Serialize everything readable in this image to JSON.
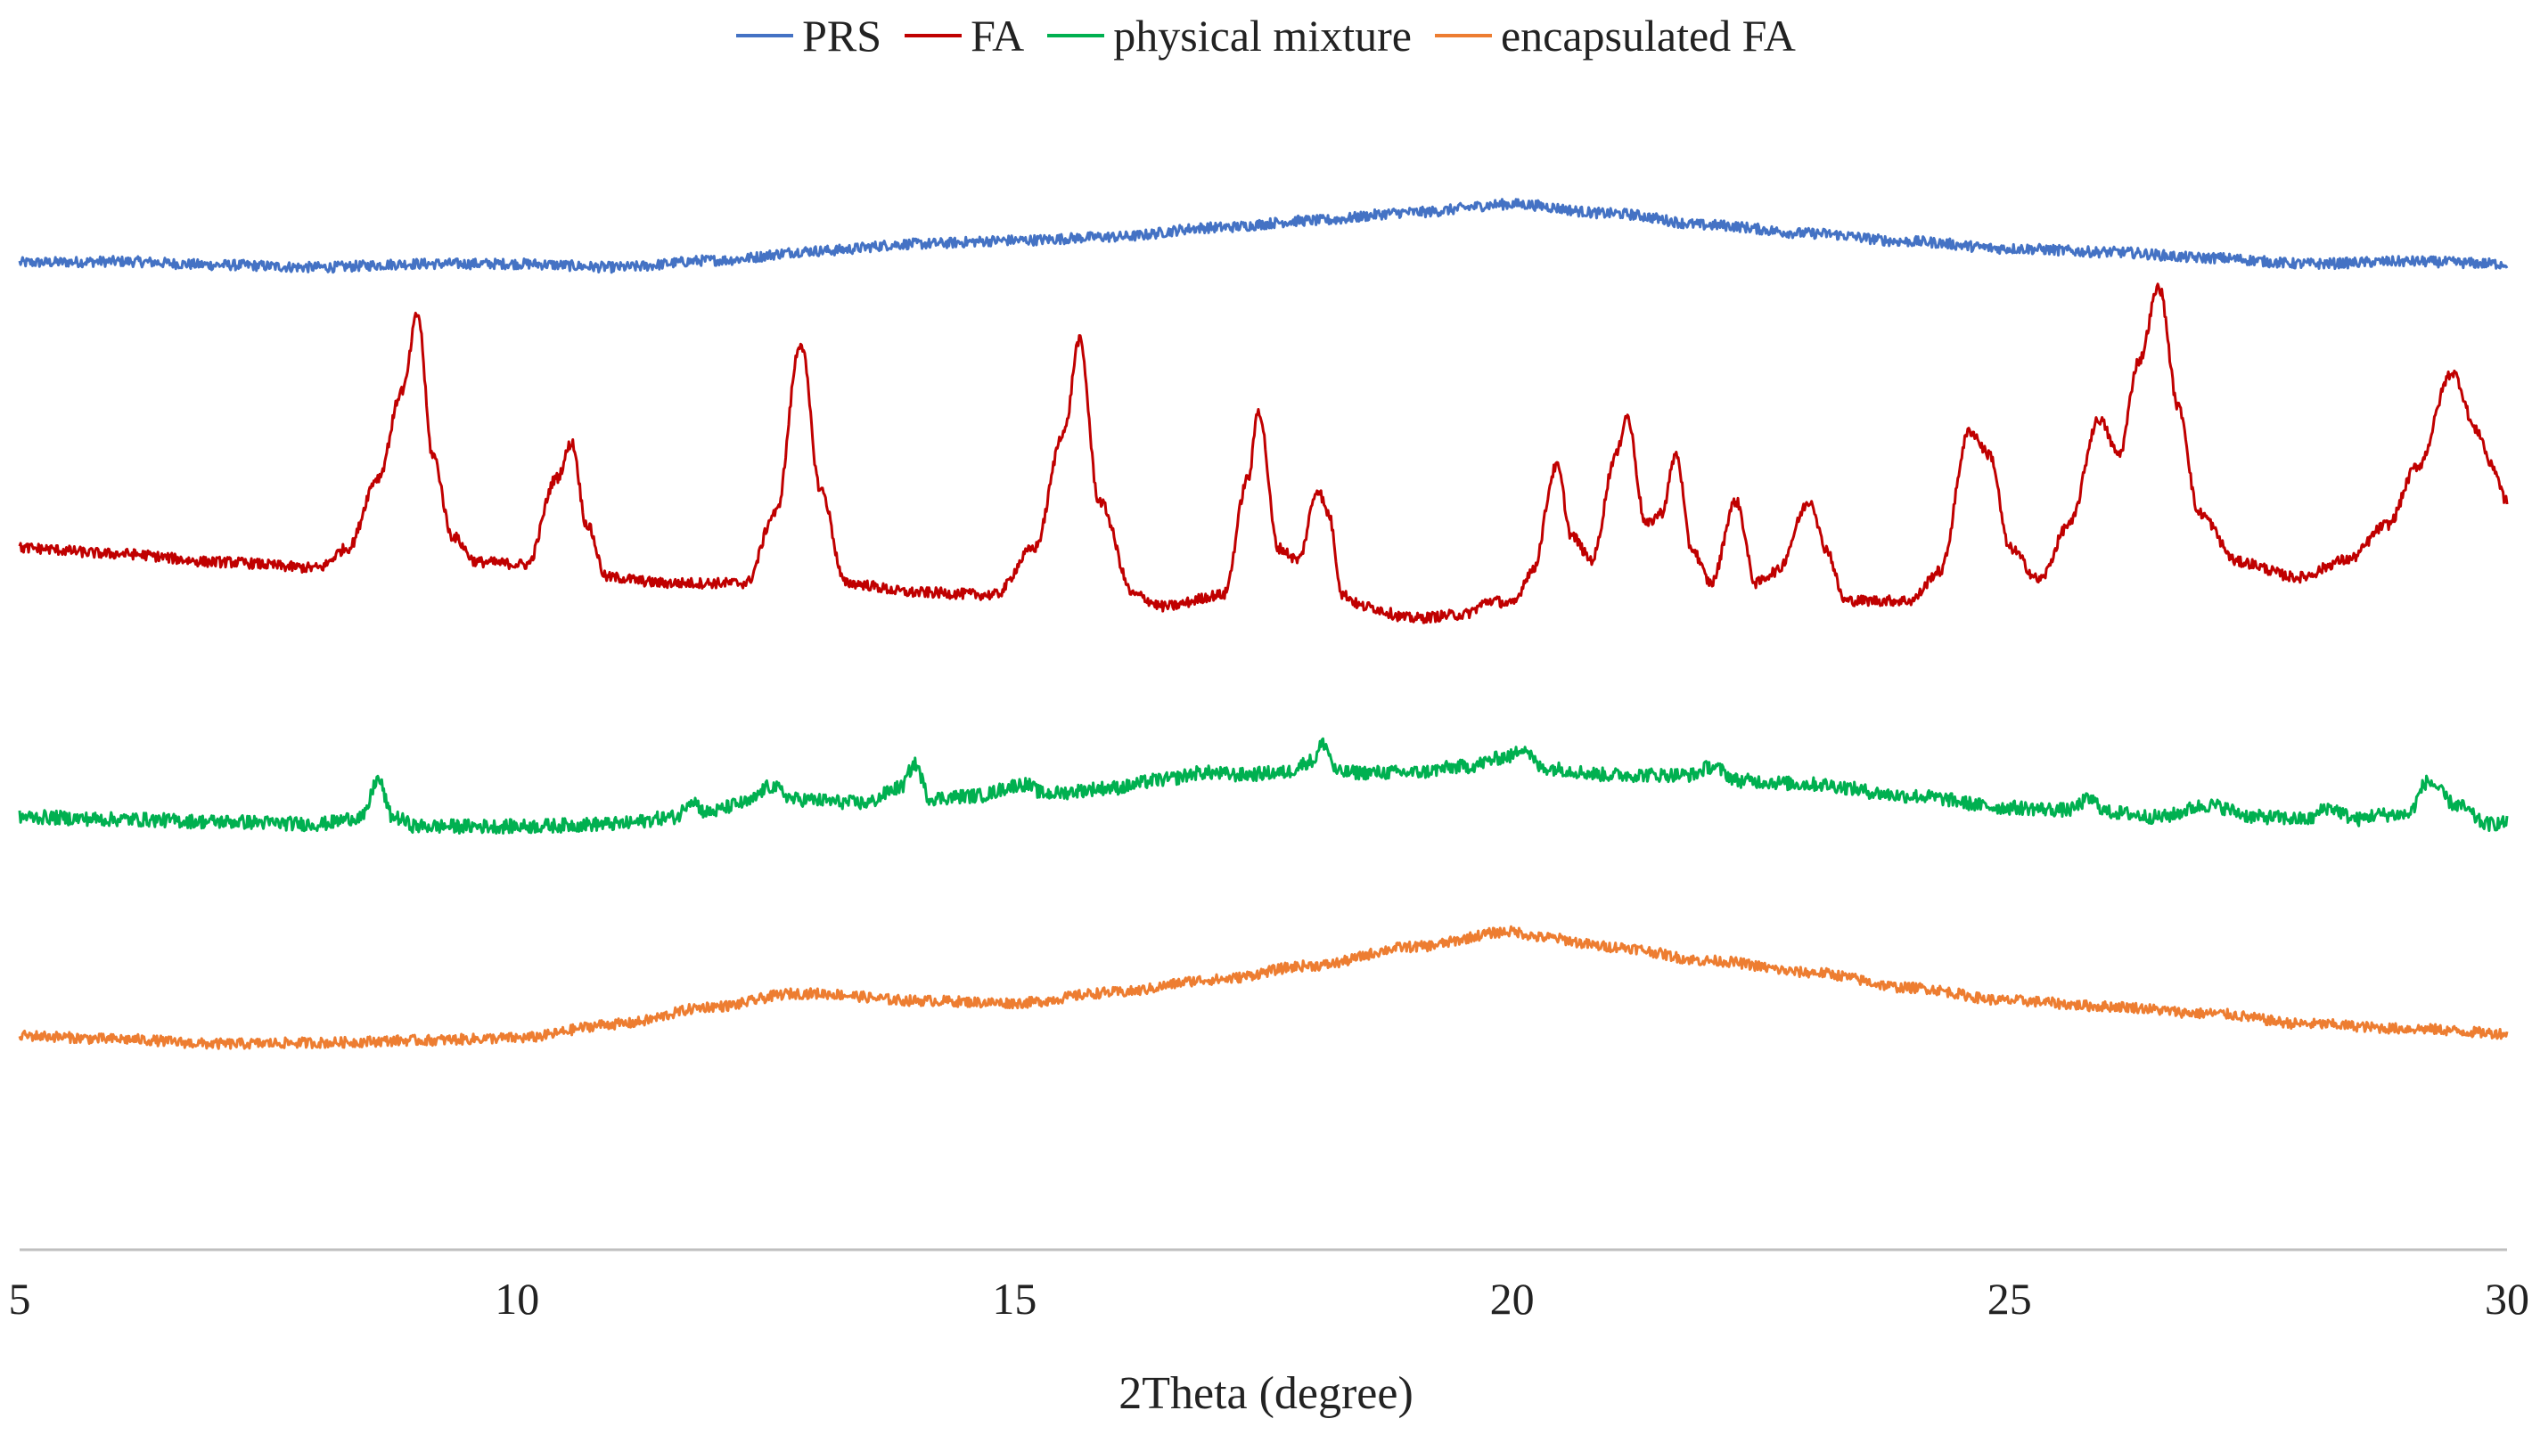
{
  "chart_data": {
    "type": "line",
    "title": "",
    "xlabel": "2Theta (degree)",
    "ylabel": "",
    "xlim": [
      5,
      30
    ],
    "ylim": [
      0,
      100
    ],
    "xticks": [
      5,
      10,
      15,
      20,
      25,
      30
    ],
    "grid": false,
    "y_axis_visible": false,
    "legend_position": "top-center",
    "series": [
      {
        "name": "PRS",
        "color": "#4472C4",
        "noise": 0.45,
        "points": [
          [
            5,
            84.4
          ],
          [
            6,
            84.5
          ],
          [
            7,
            84.2
          ],
          [
            8,
            84.0
          ],
          [
            9,
            84.3
          ],
          [
            10,
            84.3
          ],
          [
            11,
            84.0
          ],
          [
            12,
            84.6
          ],
          [
            13,
            85.4
          ],
          [
            14,
            86.0
          ],
          [
            15,
            86.3
          ],
          [
            16,
            86.6
          ],
          [
            17,
            87.4
          ],
          [
            18,
            88.0
          ],
          [
            19,
            88.7
          ],
          [
            20,
            89.4
          ],
          [
            21,
            88.6
          ],
          [
            22,
            87.6
          ],
          [
            23,
            86.9
          ],
          [
            24,
            86.2
          ],
          [
            25,
            85.6
          ],
          [
            26,
            85.3
          ],
          [
            27,
            84.8
          ],
          [
            28,
            84.3
          ],
          [
            29,
            84.5
          ],
          [
            30,
            84.3
          ]
        ]
      },
      {
        "name": "FA",
        "color": "#C00000",
        "noise": 0.45,
        "points": [
          [
            5,
            60.0
          ],
          [
            6,
            59.5
          ],
          [
            7,
            58.8
          ],
          [
            8,
            58.3
          ],
          [
            8.3,
            60.0
          ],
          [
            8.6,
            66.0
          ],
          [
            8.85,
            73.5
          ],
          [
            9.0,
            80.0
          ],
          [
            9.15,
            68.0
          ],
          [
            9.35,
            61.0
          ],
          [
            9.6,
            58.8
          ],
          [
            10.1,
            58.6
          ],
          [
            10.4,
            66.0
          ],
          [
            10.55,
            69.0
          ],
          [
            10.7,
            62.0
          ],
          [
            10.9,
            57.5
          ],
          [
            11.5,
            57.0
          ],
          [
            12.3,
            57.0
          ],
          [
            12.6,
            63.0
          ],
          [
            12.85,
            77.5
          ],
          [
            13.05,
            65.0
          ],
          [
            13.3,
            57.0
          ],
          [
            14.0,
            56.2
          ],
          [
            14.8,
            56.0
          ],
          [
            15.2,
            60.0
          ],
          [
            15.5,
            70.0
          ],
          [
            15.65,
            77.8
          ],
          [
            15.85,
            64.0
          ],
          [
            16.2,
            56.0
          ],
          [
            16.5,
            55.0
          ],
          [
            17.1,
            56.0
          ],
          [
            17.35,
            66.0
          ],
          [
            17.45,
            71.8
          ],
          [
            17.65,
            60.0
          ],
          [
            17.85,
            59.0
          ],
          [
            18.05,
            65.0
          ],
          [
            18.15,
            63.0
          ],
          [
            18.3,
            56.0
          ],
          [
            18.5,
            55.0
          ],
          [
            19.0,
            54.0
          ],
          [
            19.5,
            54.3
          ],
          [
            19.8,
            55.5
          ],
          [
            20.0,
            55.2
          ],
          [
            20.2,
            58.0
          ],
          [
            20.45,
            67.0
          ],
          [
            20.6,
            61.0
          ],
          [
            20.8,
            59.0
          ],
          [
            21.05,
            68.0
          ],
          [
            21.15,
            71.3
          ],
          [
            21.35,
            62.0
          ],
          [
            21.5,
            63.0
          ],
          [
            21.65,
            68.0
          ],
          [
            21.8,
            60.0
          ],
          [
            22.0,
            57.0
          ],
          [
            22.25,
            64.0
          ],
          [
            22.45,
            57.0
          ],
          [
            22.65,
            58.0
          ],
          [
            23.0,
            64.0
          ],
          [
            23.15,
            60.0
          ],
          [
            23.35,
            55.5
          ],
          [
            24.0,
            55.5
          ],
          [
            24.3,
            58.0
          ],
          [
            24.6,
            70.0
          ],
          [
            24.8,
            68.0
          ],
          [
            25.0,
            60.0
          ],
          [
            25.3,
            57.3
          ],
          [
            25.6,
            62.0
          ],
          [
            25.9,
            71.0
          ],
          [
            26.1,
            68.0
          ],
          [
            26.3,
            76.0
          ],
          [
            26.5,
            82.3
          ],
          [
            26.7,
            72.0
          ],
          [
            26.9,
            63.0
          ],
          [
            27.3,
            58.8
          ],
          [
            27.9,
            57.5
          ],
          [
            28.4,
            59.0
          ],
          [
            28.8,
            62.0
          ],
          [
            29.1,
            67.0
          ],
          [
            29.45,
            75.0
          ],
          [
            29.7,
            70.0
          ],
          [
            29.85,
            67.0
          ],
          [
            30.0,
            64.0
          ]
        ]
      },
      {
        "name": "physical mixture",
        "color": "#00B050",
        "noise": 0.6,
        "points": [
          [
            5,
            37.0
          ],
          [
            6,
            36.8
          ],
          [
            7,
            36.6
          ],
          [
            8,
            36.4
          ],
          [
            8.45,
            37.0
          ],
          [
            8.6,
            40.2
          ],
          [
            8.75,
            37.0
          ],
          [
            9.0,
            36.2
          ],
          [
            10,
            36.2
          ],
          [
            11,
            36.4
          ],
          [
            11.6,
            37.0
          ],
          [
            11.75,
            38.5
          ],
          [
            11.9,
            37.4
          ],
          [
            12.3,
            38.2
          ],
          [
            12.55,
            39.6
          ],
          [
            12.8,
            38.5
          ],
          [
            13.5,
            38.2
          ],
          [
            13.85,
            39.5
          ],
          [
            14.0,
            41.5
          ],
          [
            14.15,
            38.6
          ],
          [
            14.6,
            38.8
          ],
          [
            15.1,
            39.8
          ],
          [
            15.3,
            39.0
          ],
          [
            16.0,
            39.5
          ],
          [
            16.5,
            40.2
          ],
          [
            16.9,
            40.8
          ],
          [
            17.25,
            40.6
          ],
          [
            17.7,
            40.8
          ],
          [
            18.0,
            41.8
          ],
          [
            18.1,
            43.3
          ],
          [
            18.25,
            40.8
          ],
          [
            19.0,
            40.8
          ],
          [
            19.5,
            41.3
          ],
          [
            20.0,
            42.2
          ],
          [
            20.1,
            43.0
          ],
          [
            20.3,
            41.2
          ],
          [
            21.0,
            40.6
          ],
          [
            21.8,
            40.6
          ],
          [
            22.0,
            41.3
          ],
          [
            22.3,
            40.1
          ],
          [
            23.0,
            39.8
          ],
          [
            24.0,
            38.8
          ],
          [
            25.0,
            37.8
          ],
          [
            25.6,
            37.6
          ],
          [
            25.8,
            38.5
          ],
          [
            26.0,
            37.4
          ],
          [
            26.5,
            37.0
          ],
          [
            27.0,
            38.0
          ],
          [
            27.5,
            37.0
          ],
          [
            28.0,
            36.8
          ],
          [
            28.2,
            37.8
          ],
          [
            28.5,
            36.8
          ],
          [
            28.7,
            37.2
          ],
          [
            29.0,
            37.2
          ],
          [
            29.2,
            40.0
          ],
          [
            29.5,
            38.0
          ],
          [
            29.8,
            36.4
          ],
          [
            30.0,
            36.5
          ]
        ]
      },
      {
        "name": "encapsulated FA",
        "color": "#ED7D31",
        "noise": 0.45,
        "points": [
          [
            5,
            18.3
          ],
          [
            6,
            18.0
          ],
          [
            7,
            17.6
          ],
          [
            8,
            17.7
          ],
          [
            9,
            17.9
          ],
          [
            10,
            18.1
          ],
          [
            11,
            19.3
          ],
          [
            12,
            20.8
          ],
          [
            12.8,
            21.9
          ],
          [
            13,
            21.9
          ],
          [
            14,
            21.3
          ],
          [
            15,
            21.1
          ],
          [
            16,
            22.0
          ],
          [
            17,
            23.1
          ],
          [
            18,
            24.3
          ],
          [
            19,
            25.9
          ],
          [
            20,
            27.2
          ],
          [
            20.3,
            26.7
          ],
          [
            21,
            25.9
          ],
          [
            22,
            24.7
          ],
          [
            23,
            23.7
          ],
          [
            24,
            22.4
          ],
          [
            25,
            21.3
          ],
          [
            26,
            20.8
          ],
          [
            27,
            20.2
          ],
          [
            28,
            19.3
          ],
          [
            29,
            18.9
          ],
          [
            30,
            18.5
          ]
        ]
      }
    ]
  }
}
